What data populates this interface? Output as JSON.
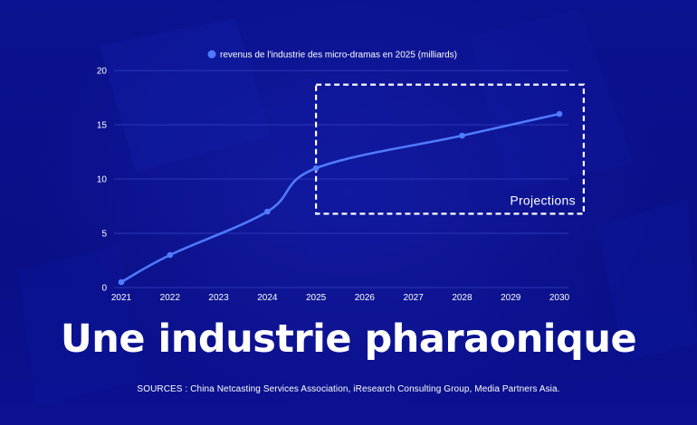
{
  "headline": "Une industrie pharaonique",
  "sources": "SOURCES : China Netcasting Services Association, iResearch Consulting Group, Media Partners Asia.",
  "colors": {
    "background": "#0a0f8c",
    "line": "#4f7bff",
    "text": "#ffffff",
    "grid": "#3b47c8"
  },
  "chart_data": {
    "type": "line",
    "title": "",
    "xlabel": "",
    "ylabel": "",
    "x": [
      2021,
      2022,
      2023,
      2024,
      2025,
      2026,
      2027,
      2028,
      2029,
      2030
    ],
    "series": [
      {
        "name": "revenus de l'industrie des micro-dramas en 2025 (milliards)",
        "x": [
          2021,
          2022,
          2024,
          2025,
          2028,
          2030
        ],
        "values": [
          0.5,
          3,
          7,
          11,
          14,
          16
        ]
      }
    ],
    "ylim": [
      0,
      20
    ],
    "yticks": [
      0,
      5,
      10,
      15,
      20
    ],
    "xticks": [
      "2021",
      "2022",
      "2023",
      "2024",
      "2025",
      "2026",
      "2027",
      "2028",
      "2029",
      "2030"
    ],
    "grid": true,
    "legend": "top-center",
    "annotation": {
      "label": "Projections",
      "x_from": 2025,
      "x_to": 2030.5,
      "y_from": 6.8,
      "y_to": 18.7
    }
  }
}
